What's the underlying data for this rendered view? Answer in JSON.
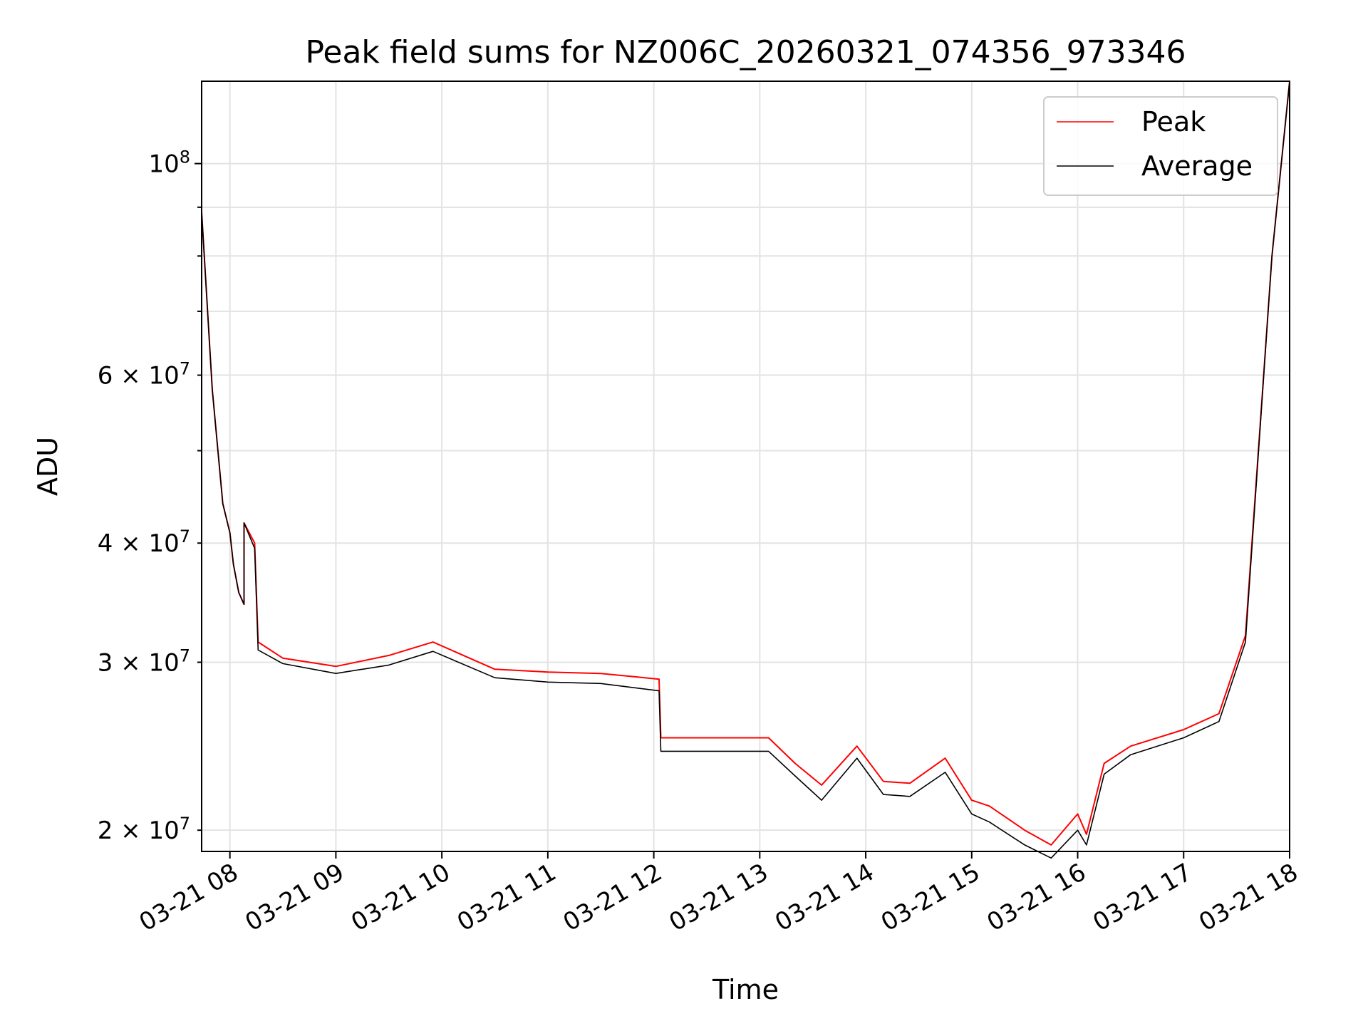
{
  "chart_data": {
    "type": "line",
    "title": "Peak field sums for NZ006C_20260321_074356_973346",
    "xlabel": "Time",
    "ylabel": "ADU",
    "yscale": "log",
    "grid": true,
    "legend_position": "top-right",
    "xlim": [
      "03-21 07:44",
      "03-21 18:00"
    ],
    "ylim": [
      19000000,
      122000000
    ],
    "x_tick_labels": [
      "03-21 08",
      "03-21 09",
      "03-21 10",
      "03-21 11",
      "03-21 12",
      "03-21 13",
      "03-21 14",
      "03-21 15",
      "03-21 16",
      "03-21 17",
      "03-21 18"
    ],
    "x_tick_times": [
      "08:00",
      "09:00",
      "10:00",
      "11:00",
      "12:00",
      "13:00",
      "14:00",
      "15:00",
      "16:00",
      "17:00",
      "18:00"
    ],
    "y_major_ticks": [
      {
        "value": 100000000,
        "label": "10^8"
      }
    ],
    "y_minor_ticks": [
      {
        "value": 20000000,
        "label": "2×10^7"
      },
      {
        "value": 30000000,
        "label": "3×10^7"
      },
      {
        "value": 40000000,
        "label": "4×10^7"
      },
      {
        "value": 60000000,
        "label": "6×10^7"
      }
    ],
    "series": [
      {
        "name": "Peak",
        "color": "#ff0000",
        "x": [
          "07:44",
          "07:50",
          "07:56",
          "08:00",
          "08:02",
          "08:05",
          "08:08",
          "08:08",
          "08:14",
          "08:16",
          "08:30",
          "09:00",
          "09:30",
          "09:55",
          "10:30",
          "11:00",
          "11:30",
          "12:03",
          "12:04",
          "12:30",
          "13:05",
          "13:20",
          "13:35",
          "13:55",
          "14:10",
          "14:25",
          "14:45",
          "15:00",
          "15:10",
          "15:30",
          "15:45",
          "16:00",
          "16:05",
          "16:15",
          "16:30",
          "17:00",
          "17:20",
          "17:35",
          "17:50",
          "18:00"
        ],
        "y": [
          89000000,
          58000000,
          44000000,
          41000000,
          38000000,
          35500000,
          34500000,
          42000000,
          40000000,
          31500000,
          30300000,
          29700000,
          30500000,
          31500000,
          29500000,
          29300000,
          29200000,
          28800000,
          25000000,
          25000000,
          25000000,
          23500000,
          22300000,
          24500000,
          22500000,
          22400000,
          23800000,
          21500000,
          21200000,
          20000000,
          19300000,
          20800000,
          19800000,
          23500000,
          24500000,
          25500000,
          26500000,
          32000000,
          80000000,
          122000000
        ]
      },
      {
        "name": "Average",
        "color": "#000000",
        "x": [
          "07:44",
          "07:50",
          "07:56",
          "08:00",
          "08:02",
          "08:05",
          "08:08",
          "08:08",
          "08:14",
          "08:16",
          "08:30",
          "09:00",
          "09:30",
          "09:55",
          "10:30",
          "11:00",
          "11:30",
          "12:03",
          "12:04",
          "12:30",
          "13:05",
          "13:20",
          "13:35",
          "13:55",
          "14:10",
          "14:25",
          "14:45",
          "15:00",
          "15:10",
          "15:30",
          "15:45",
          "16:00",
          "16:05",
          "16:15",
          "16:30",
          "17:00",
          "17:20",
          "17:35",
          "17:50",
          "18:00"
        ],
        "y": [
          89000000,
          58000000,
          44000000,
          41000000,
          38000000,
          35500000,
          34500000,
          42000000,
          39500000,
          30900000,
          29900000,
          29200000,
          29800000,
          30800000,
          28900000,
          28600000,
          28500000,
          28000000,
          24200000,
          24200000,
          24200000,
          22800000,
          21500000,
          23800000,
          21800000,
          21700000,
          23000000,
          20800000,
          20400000,
          19300000,
          18700000,
          20000000,
          19300000,
          22900000,
          24000000,
          25000000,
          26000000,
          31500000,
          80000000,
          122000000
        ]
      }
    ]
  }
}
